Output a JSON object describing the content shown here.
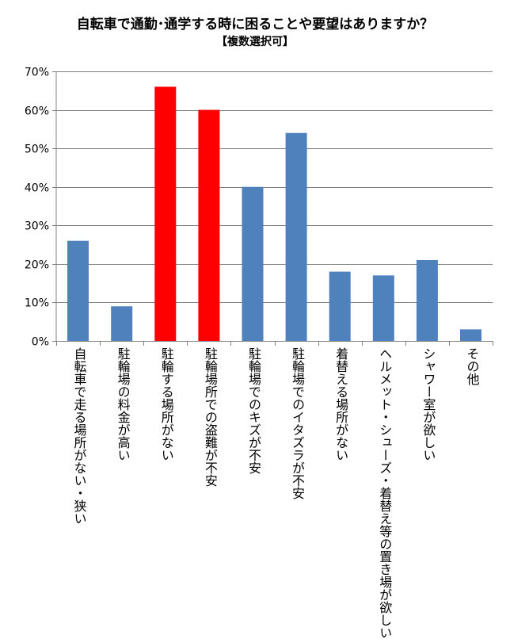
{
  "chart_data": {
    "type": "bar",
    "title": "自転車で通勤･通学する時に困ることや要望はありますか？",
    "subtitle": "【複数選択可】",
    "categories": [
      "自転車で走る場所がない・狭い",
      "駐輪場の料金が高い",
      "駐輪する場所がない",
      "駐輪場所での盗難が不安",
      "駐輪場でのキズが不安",
      "駐輪場でのイタズラが不安",
      "着替える場所がない",
      "ヘルメット・シューズ・着替え等の置き場が欲しい",
      "シャワー室が欲しい",
      "その他"
    ],
    "values": [
      26,
      9,
      66,
      60,
      40,
      54,
      18,
      17,
      21,
      3
    ],
    "highlight": [
      false,
      false,
      true,
      true,
      false,
      false,
      false,
      false,
      false,
      false
    ],
    "ylim": [
      0,
      70
    ],
    "yticks": [
      "0%",
      "10%",
      "20%",
      "30%",
      "40%",
      "50%",
      "60%",
      "70%"
    ],
    "colors": {
      "default": "#4f81bd",
      "highlight": "#ff0000",
      "grid": "#808080"
    },
    "xlabel": "",
    "ylabel": ""
  }
}
